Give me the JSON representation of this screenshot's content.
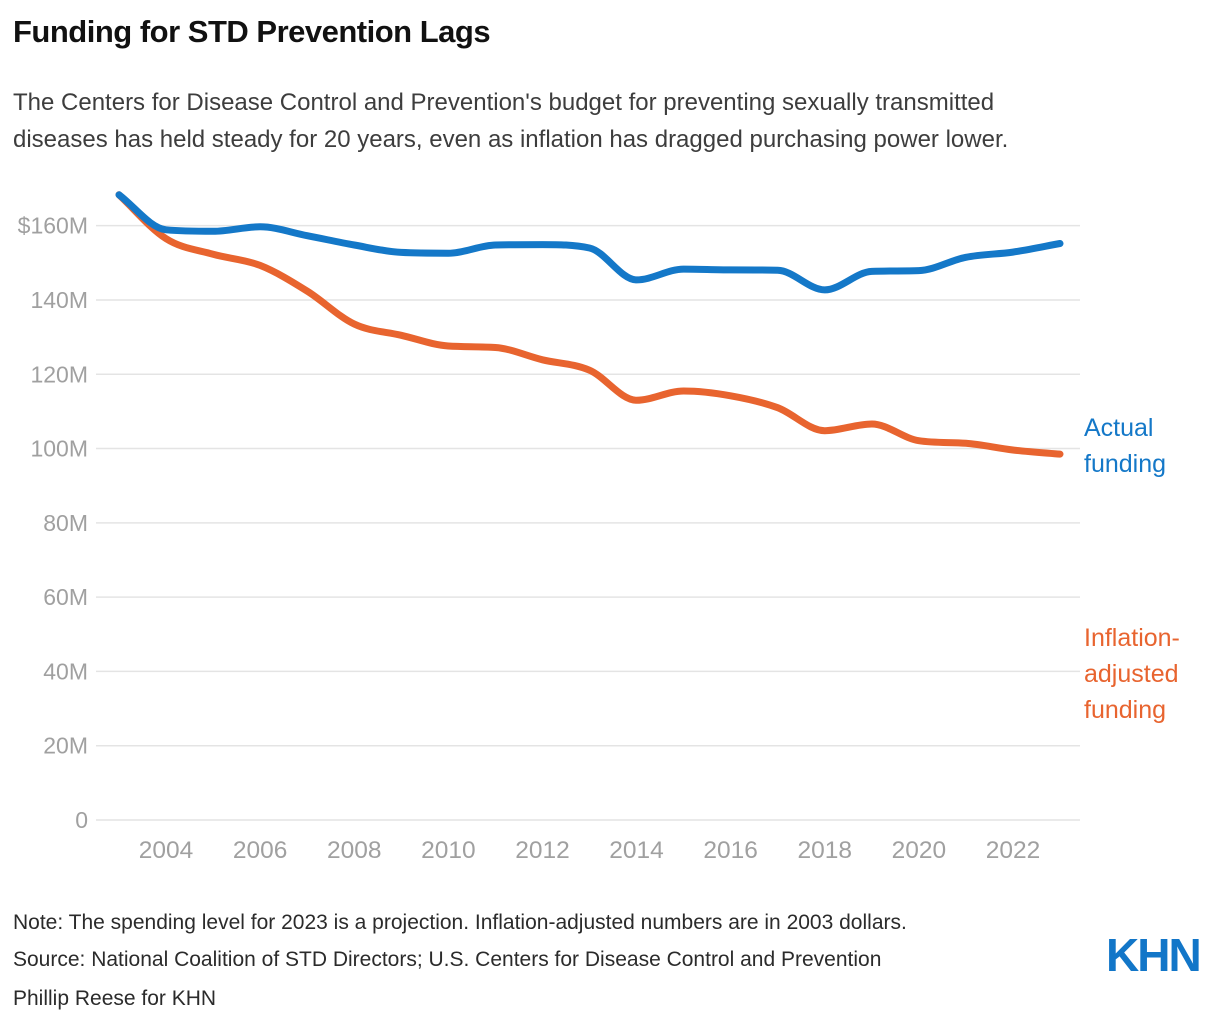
{
  "header": {
    "title": "Funding for STD Prevention Lags",
    "subtitle": "The Centers for Disease Control and Prevention's budget for preventing sexually transmitted diseases has held steady for 20 years, even as inflation has dragged purchasing power lower."
  },
  "chart_data": {
    "type": "line",
    "x": [
      2003,
      2004,
      2005,
      2006,
      2007,
      2008,
      2009,
      2010,
      2011,
      2012,
      2013,
      2014,
      2015,
      2016,
      2017,
      2018,
      2019,
      2020,
      2021,
      2022,
      2023
    ],
    "series": [
      {
        "name": "Actual funding",
        "color": "#1478c8",
        "values": [
          168.3,
          158.9,
          158.5,
          159.7,
          157.3,
          154.8,
          152.8,
          152.6,
          154.8,
          154.9,
          154.0,
          145.4,
          148.3,
          148.1,
          148.0,
          142.7,
          147.7,
          147.9,
          151.5,
          152.9,
          155.2
        ]
      },
      {
        "name": "Inflation-adjusted funding",
        "color": "#e8642f",
        "values": [
          168.3,
          156.5,
          152.3,
          149.3,
          142.4,
          133.5,
          130.5,
          127.6,
          127.2,
          123.9,
          121.1,
          113.0,
          115.5,
          114.2,
          111.0,
          104.8,
          106.6,
          102.1,
          101.4,
          99.6,
          98.5
        ]
      }
    ],
    "units": "millions of dollars",
    "xlim": [
      2003,
      2023
    ],
    "ylim": [
      0,
      170
    ],
    "yticks": [
      {
        "value": 160,
        "label": "$160M"
      },
      {
        "value": 140,
        "label": "140M"
      },
      {
        "value": 120,
        "label": "120M"
      },
      {
        "value": 100,
        "label": "100M"
      },
      {
        "value": 80,
        "label": "80M"
      },
      {
        "value": 60,
        "label": "60M"
      },
      {
        "value": 40,
        "label": "40M"
      },
      {
        "value": 20,
        "label": "20M"
      },
      {
        "value": 0,
        "label": "0"
      }
    ],
    "xticks": [
      "2004",
      "2006",
      "2008",
      "2010",
      "2012",
      "2014",
      "2016",
      "2018",
      "2020",
      "2022"
    ],
    "grid": "horizontal",
    "legend_position": "right of line ends",
    "line_style": "smoothed monotone curves"
  },
  "colors": {
    "actual": "#1478c8",
    "inflation": "#e8642f",
    "gridline": "#e4e4e4",
    "axis_label": "#a0a0a0",
    "logo_blue": "#1276c8"
  },
  "footer": {
    "note": "Note: The spending level for 2023 is a projection. Inflation-adjusted numbers are in 2003 dollars.",
    "source": "Source: National Coalition of STD Directors; U.S. Centers for Disease Control and Prevention",
    "credit": "Phillip Reese for KHN",
    "logo": "KHN"
  }
}
